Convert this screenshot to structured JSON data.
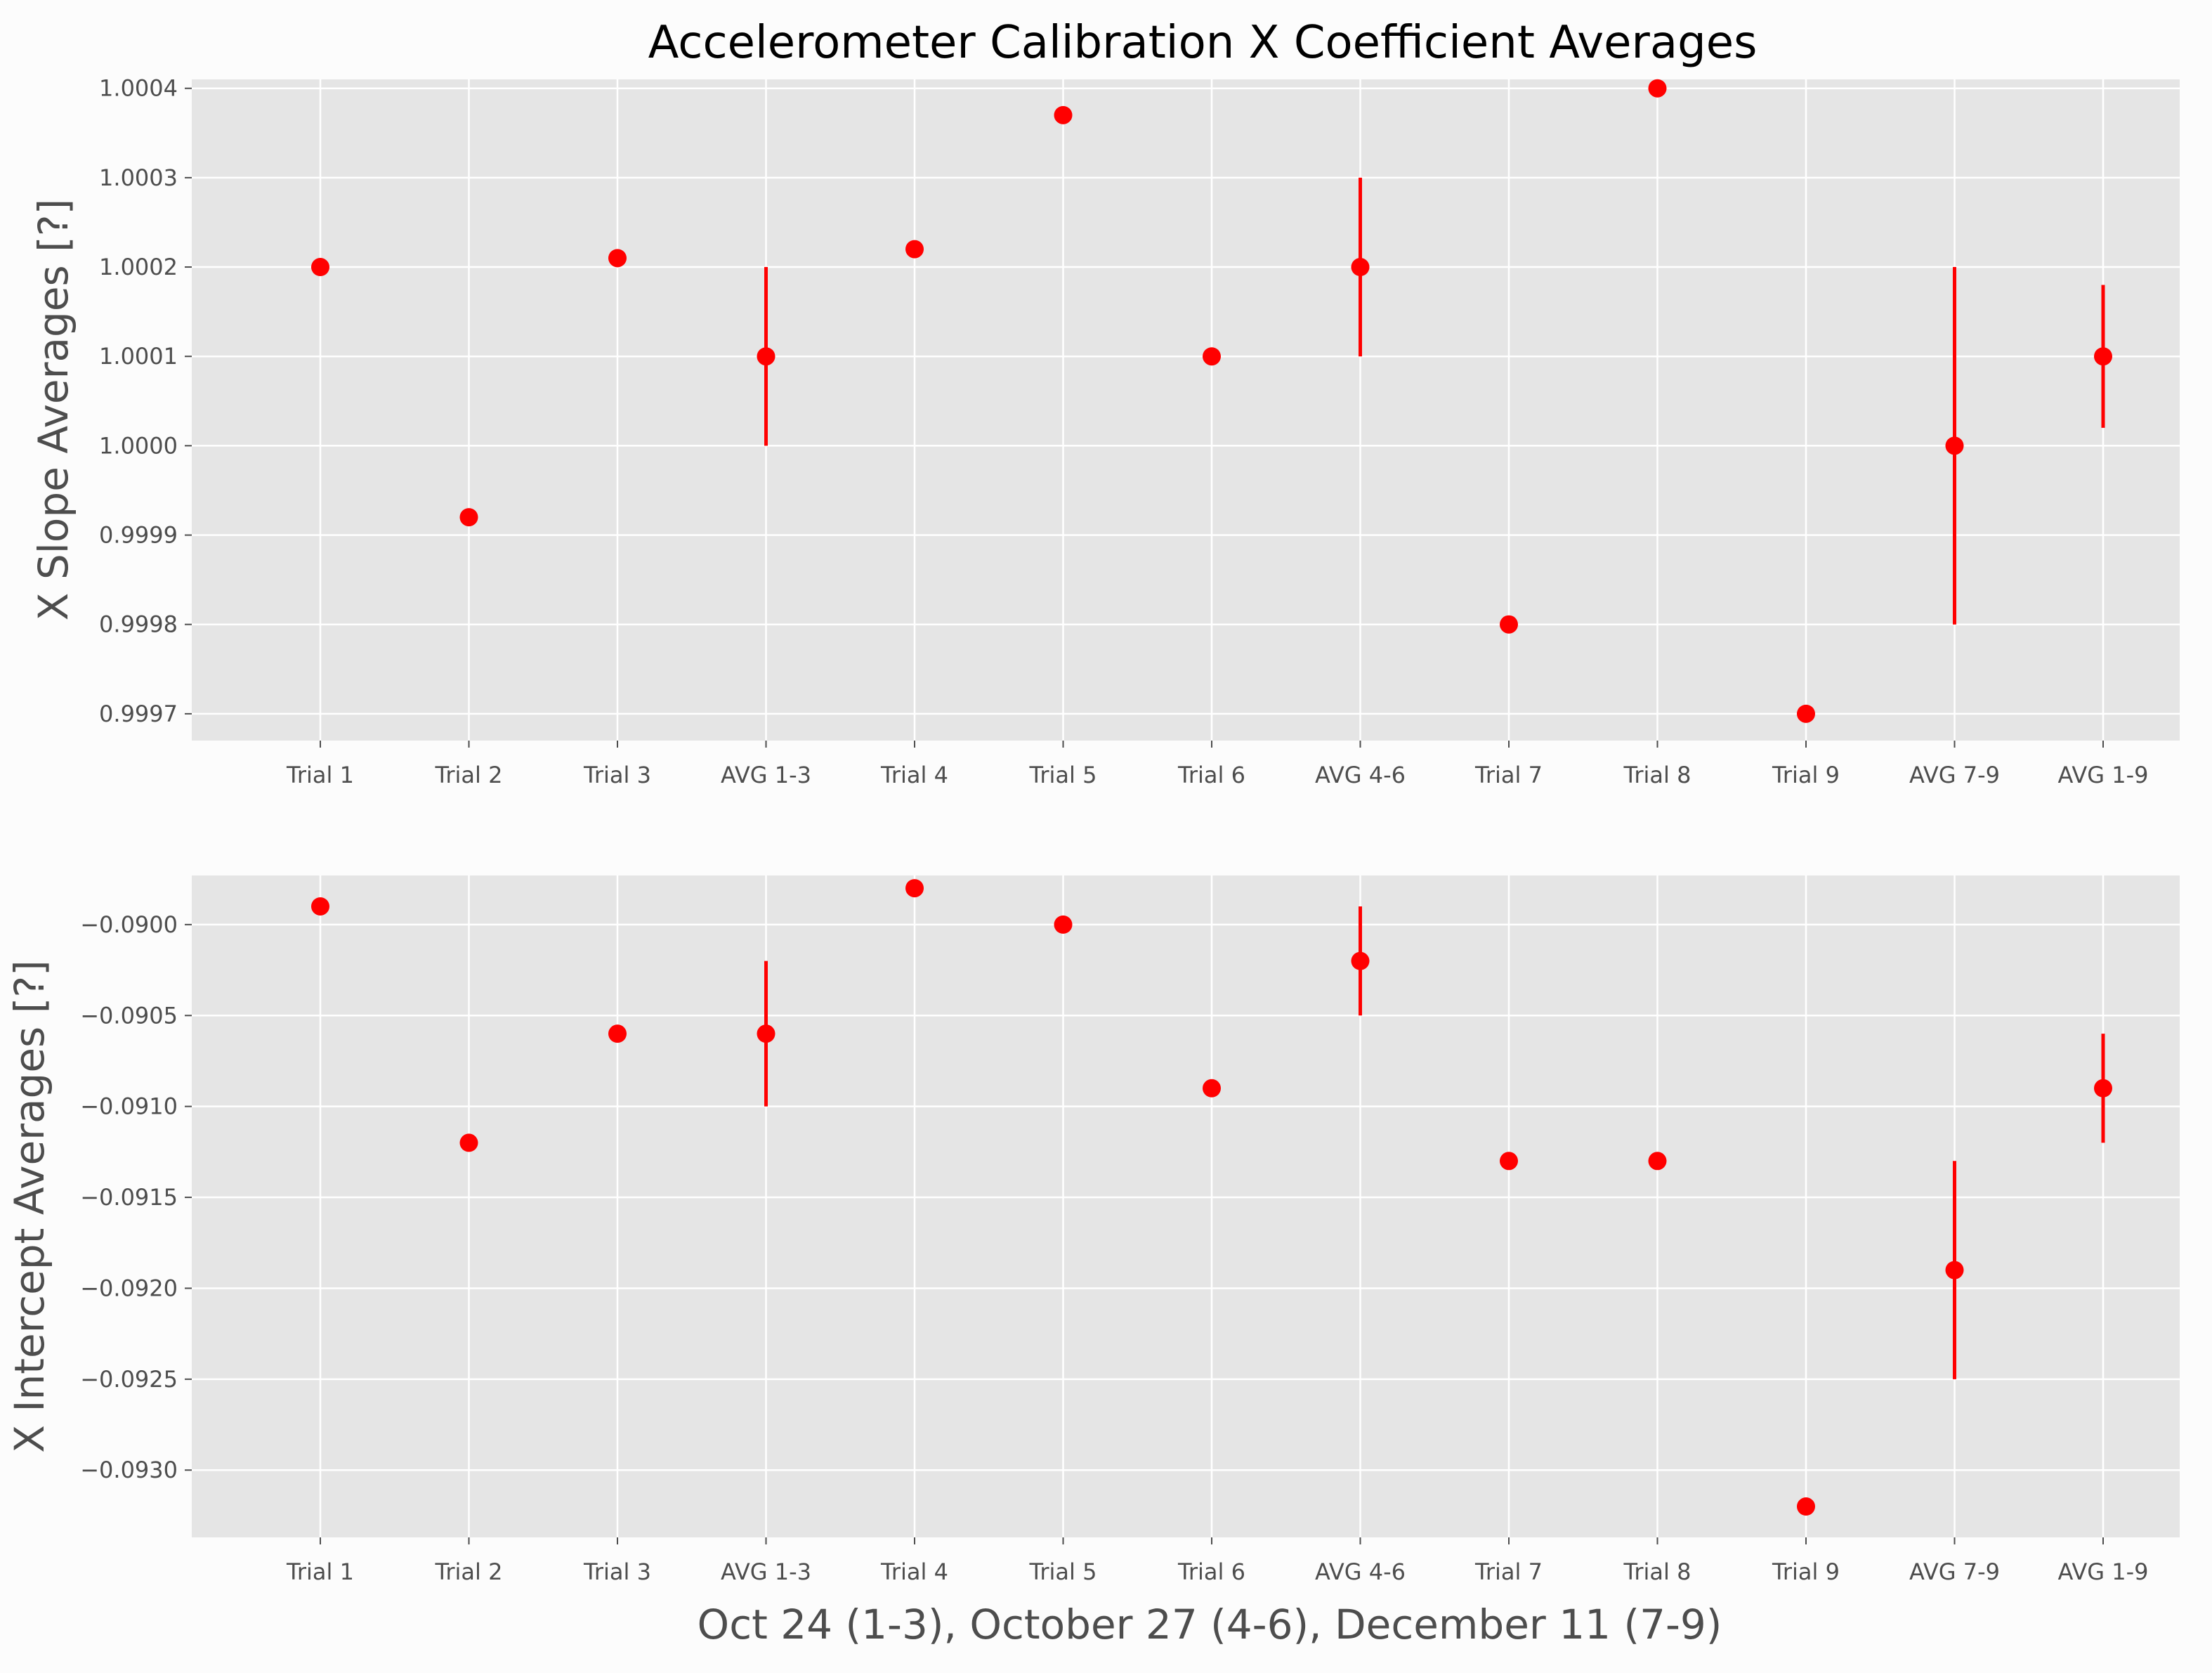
{
  "chart_data": {
    "title": "Accelerometer Calibration X Coefficient Averages",
    "xlabel": "Oct 24 (1-3), October 27 (4-6), December 11 (7-9)",
    "categories": [
      "Trial 1",
      "Trial 2",
      "Trial 3",
      "AVG 1-3",
      "Trial 4",
      "Trial 5",
      "Trial 6",
      "AVG 4-6",
      "Trial 7",
      "Trial 8",
      "Trial 9",
      "AVG 7-9",
      "AVG 1-9"
    ],
    "marker_color": "#ff0000",
    "plot_background": "#e5e5e5",
    "grid": true,
    "grid_color": "#ffffff",
    "charts": [
      {
        "type": "scatter",
        "ylabel": "X Slope Averages [?]",
        "ylim": [
          0.99967,
          1.00041
        ],
        "yticks": [
          0.9997,
          0.9998,
          0.9999,
          1.0,
          1.0001,
          1.0002,
          1.0003,
          1.0004
        ],
        "ytick_labels": [
          "0.9997",
          "0.9998",
          "0.9999",
          "1.0000",
          "1.0001",
          "1.0002",
          "1.0003",
          "1.0004"
        ],
        "values": [
          1.0002,
          0.99992,
          1.00021,
          1.0001,
          1.00022,
          1.00037,
          1.0001,
          1.0002,
          0.9998,
          1.0004,
          0.9997,
          1.0,
          1.0001
        ],
        "errors": [
          0,
          0,
          0,
          0.0001,
          0,
          0,
          0,
          0.0001,
          0,
          0,
          0,
          0.0002,
          8e-05
        ]
      },
      {
        "type": "scatter",
        "ylabel": "X Intercept Averages [?]",
        "ylim": [
          -0.09337,
          -0.08973
        ],
        "yticks": [
          -0.093,
          -0.0925,
          -0.092,
          -0.0915,
          -0.091,
          -0.0905,
          -0.09
        ],
        "ytick_labels": [
          "−0.0930",
          "−0.0925",
          "−0.0920",
          "−0.0915",
          "−0.0910",
          "−0.0905",
          "−0.0900"
        ],
        "values": [
          -0.0899,
          -0.0912,
          -0.0906,
          -0.0906,
          -0.0898,
          -0.09,
          -0.0909,
          -0.0902,
          -0.0913,
          -0.0913,
          -0.0932,
          -0.0919,
          -0.0909
        ],
        "errors": [
          0,
          0,
          0,
          0.0004,
          0,
          0,
          0,
          0.0003,
          0,
          0,
          0,
          0.0006,
          0.0003
        ]
      }
    ]
  }
}
